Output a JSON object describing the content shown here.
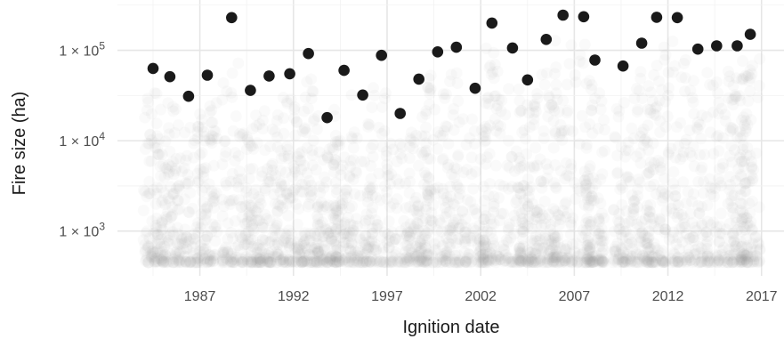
{
  "chart_data": {
    "type": "scatter",
    "xlabel": "Ignition date",
    "ylabel": "Fire size (ha)",
    "x_ticks": [
      {
        "value": 1987,
        "label": "1987"
      },
      {
        "value": 1992,
        "label": "1992"
      },
      {
        "value": 1997,
        "label": "1997"
      },
      {
        "value": 2002,
        "label": "2002"
      },
      {
        "value": 2007,
        "label": "2007"
      },
      {
        "value": 2012,
        "label": "2012"
      },
      {
        "value": 2017,
        "label": "2017"
      }
    ],
    "y_ticks": [
      {
        "value": 1000,
        "base": "1 × 10",
        "exp": "3"
      },
      {
        "value": 10000,
        "base": "1 × 10",
        "exp": "4"
      },
      {
        "value": 100000,
        "base": "1 × 10",
        "exp": "5"
      }
    ],
    "xlim": [
      1982.6,
      2018.2
    ],
    "ylim": [
      320,
      360000
    ],
    "y_scale": "log",
    "grid": true,
    "highlight_color": "#1a1a1a",
    "background_points_color": "#9a9a9a",
    "highlight_points": [
      {
        "x": 1984.5,
        "y": 63000
      },
      {
        "x": 1985.4,
        "y": 51000
      },
      {
        "x": 1986.4,
        "y": 31000
      },
      {
        "x": 1987.4,
        "y": 53000
      },
      {
        "x": 1988.7,
        "y": 230000
      },
      {
        "x": 1989.7,
        "y": 36000
      },
      {
        "x": 1990.7,
        "y": 52000
      },
      {
        "x": 1991.8,
        "y": 55000
      },
      {
        "x": 1992.8,
        "y": 92000
      },
      {
        "x": 1993.8,
        "y": 18000
      },
      {
        "x": 1994.7,
        "y": 60000
      },
      {
        "x": 1995.7,
        "y": 32000
      },
      {
        "x": 1996.7,
        "y": 88000
      },
      {
        "x": 1997.7,
        "y": 20000
      },
      {
        "x": 1998.7,
        "y": 48000
      },
      {
        "x": 1999.7,
        "y": 96000
      },
      {
        "x": 2000.7,
        "y": 108000
      },
      {
        "x": 2001.7,
        "y": 38000
      },
      {
        "x": 2002.6,
        "y": 200000
      },
      {
        "x": 2003.7,
        "y": 106000
      },
      {
        "x": 2004.5,
        "y": 47000
      },
      {
        "x": 2005.5,
        "y": 132000
      },
      {
        "x": 2006.4,
        "y": 245000
      },
      {
        "x": 2007.5,
        "y": 235000
      },
      {
        "x": 2008.1,
        "y": 78000
      },
      {
        "x": 2009.6,
        "y": 67000
      },
      {
        "x": 2010.6,
        "y": 120000
      },
      {
        "x": 2011.4,
        "y": 232000
      },
      {
        "x": 2012.5,
        "y": 230000
      },
      {
        "x": 2013.6,
        "y": 103000
      },
      {
        "x": 2014.6,
        "y": 112000
      },
      {
        "x": 2015.7,
        "y": 112000
      },
      {
        "x": 2016.4,
        "y": 150000
      }
    ]
  }
}
